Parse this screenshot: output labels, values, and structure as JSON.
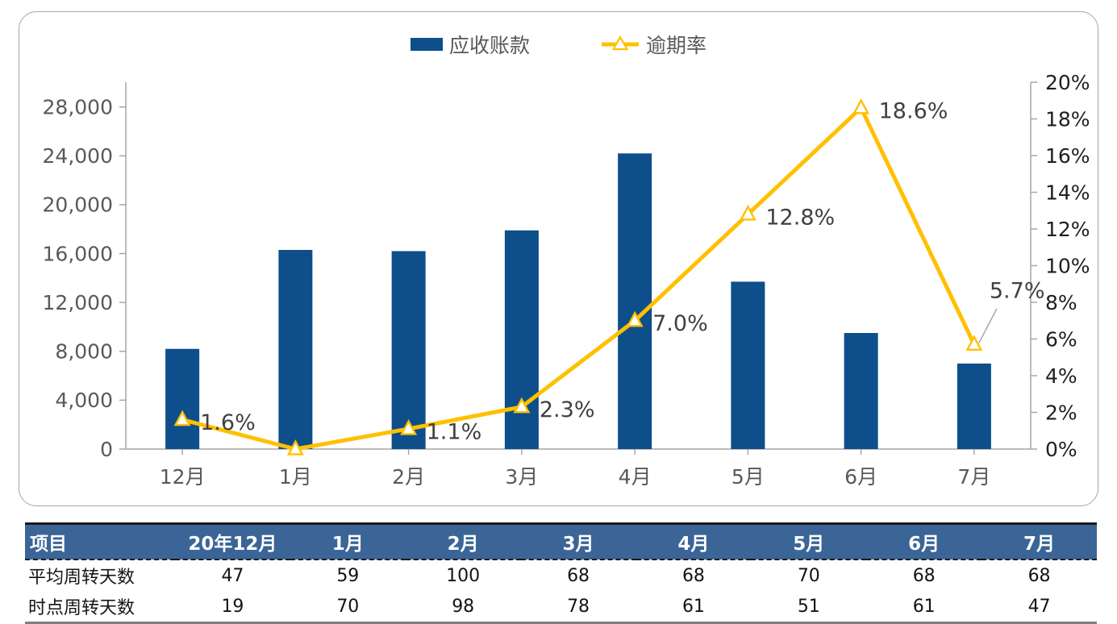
{
  "legend": {
    "bar_label": "应收账款",
    "line_label": "逾期率"
  },
  "colors": {
    "bar": "#0d4e8b",
    "line": "#ffc000",
    "marker_fill": "#ffffff",
    "axis_line": "#a6a6a6",
    "left_axis_text": "#595959",
    "right_axis_text": "#1f1f1f",
    "x_axis_text": "#595959",
    "data_label_text": "#404040",
    "table_header_bg": "#3b6596",
    "leader_line": "#a6a6a6"
  },
  "chart_data": {
    "type": "combo",
    "categories": [
      "12月",
      "1月",
      "2月",
      "3月",
      "4月",
      "5月",
      "6月",
      "7月"
    ],
    "series": [
      {
        "name": "应收账款",
        "type": "bar",
        "axis": "left",
        "values": [
          8200,
          16300,
          16200,
          17900,
          24200,
          13700,
          9500,
          7000
        ]
      },
      {
        "name": "逾期率",
        "type": "line",
        "axis": "right",
        "values_pct": [
          1.6,
          0.0,
          1.1,
          2.3,
          7.0,
          12.8,
          18.6,
          5.7
        ],
        "point_labels": [
          "1.6%",
          "",
          "1.1%",
          "2.3%",
          "7.0%",
          "12.8%",
          "18.6%",
          "5.7%"
        ]
      }
    ],
    "left_axis": {
      "min": 0,
      "max": 28000,
      "step": 4000,
      "tick_labels": [
        "0",
        "4,000",
        "8,000",
        "12,000",
        "16,000",
        "20,000",
        "24,000",
        "28,000"
      ]
    },
    "right_axis": {
      "min": 0,
      "max": 20,
      "step": 2,
      "tick_labels": [
        "0%",
        "2%",
        "4%",
        "6%",
        "8%",
        "10%",
        "12%",
        "14%",
        "16%",
        "18%",
        "20%"
      ]
    },
    "grid": false,
    "legend_position": "top"
  },
  "table": {
    "header": [
      "项目",
      "20年12月",
      "1月",
      "2月",
      "3月",
      "4月",
      "5月",
      "6月",
      "7月"
    ],
    "rows": [
      {
        "label": "平均周转天数",
        "values": [
          "47",
          "59",
          "100",
          "68",
          "68",
          "70",
          "68",
          "68"
        ]
      },
      {
        "label": "时点周转天数",
        "values": [
          "19",
          "70",
          "98",
          "78",
          "61",
          "51",
          "61",
          "47"
        ]
      }
    ]
  }
}
